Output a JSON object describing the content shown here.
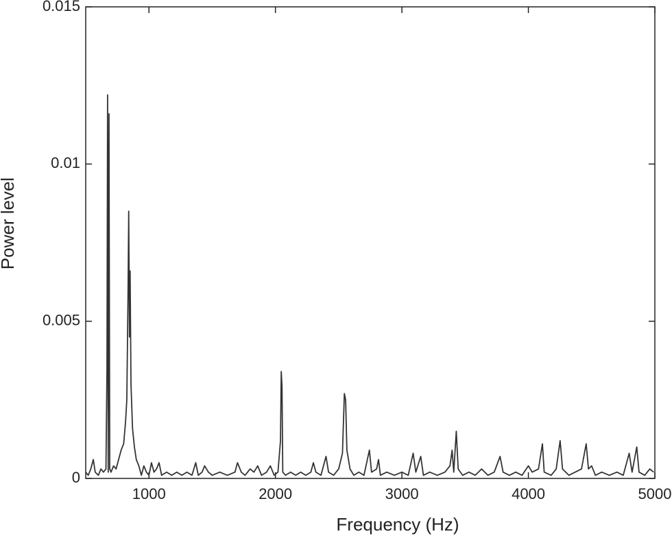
{
  "chart_data": {
    "type": "line",
    "x_label": "Frequency (Hz)",
    "y_label": "Power level",
    "color": "#333333",
    "xlim": [
      500,
      5000
    ],
    "xticks": [
      1000,
      2000,
      3000,
      4000,
      5000
    ],
    "ylim": [
      0,
      0.015
    ],
    "yticks": [
      0,
      0.005,
      0.01,
      0.015
    ],
    "x": [
      500,
      520,
      540,
      560,
      575,
      600,
      620,
      640,
      660,
      668,
      673,
      678,
      684,
      690,
      700,
      720,
      740,
      760,
      780,
      800,
      815,
      825,
      835,
      840,
      846,
      851,
      858,
      870,
      885,
      900,
      920,
      940,
      960,
      980,
      1000,
      1020,
      1040,
      1060,
      1080,
      1100,
      1140,
      1180,
      1220,
      1260,
      1300,
      1340,
      1370,
      1390,
      1420,
      1440,
      1470,
      1500,
      1560,
      1620,
      1680,
      1700,
      1730,
      1760,
      1800,
      1830,
      1860,
      1890,
      1930,
      1960,
      1990,
      2020,
      2040,
      2046,
      2052,
      2058,
      2080,
      2120,
      2160,
      2200,
      2240,
      2280,
      2300,
      2320,
      2360,
      2400,
      2420,
      2460,
      2500,
      2530,
      2545,
      2555,
      2565,
      2590,
      2620,
      2660,
      2700,
      2743,
      2760,
      2800,
      2815,
      2830,
      2880,
      2940,
      3000,
      3050,
      3089,
      3110,
      3149,
      3170,
      3220,
      3280,
      3340,
      3380,
      3397,
      3410,
      3430,
      3445,
      3480,
      3530,
      3580,
      3630,
      3680,
      3730,
      3776,
      3800,
      3850,
      3900,
      3950,
      4000,
      4030,
      4080,
      4111,
      4125,
      4180,
      4220,
      4251,
      4270,
      4320,
      4370,
      4420,
      4457,
      4475,
      4500,
      4530,
      4580,
      4640,
      4700,
      4750,
      4797,
      4820,
      4857,
      4875,
      4920,
      4960,
      4990
    ],
    "values": [
      0.0002,
      0.0001,
      0.0003,
      0.0006,
      0.0002,
      0.0001,
      0.0003,
      0.0002,
      0.0003,
      0.0035,
      0.0122,
      0.0002,
      0.0116,
      0.0003,
      0.0002,
      0.0004,
      0.0003,
      0.0006,
      0.0009,
      0.0011,
      0.0018,
      0.0025,
      0.006,
      0.0085,
      0.0045,
      0.0066,
      0.003,
      0.0016,
      0.001,
      0.0006,
      0.0004,
      0.0001,
      0.0004,
      0.0002,
      0.0001,
      0.0005,
      0.0002,
      0.0003,
      0.0005,
      0.0001,
      0.0002,
      0.0001,
      0.0002,
      0.0001,
      0.0002,
      0.0001,
      0.0005,
      0.0001,
      0.0002,
      0.0004,
      0.0002,
      0.0001,
      0.0002,
      0.0001,
      0.0002,
      0.0005,
      0.0002,
      0.0001,
      0.0003,
      0.0002,
      0.0004,
      0.0001,
      0.0002,
      0.0004,
      0.0001,
      0.0002,
      0.0012,
      0.0034,
      0.0029,
      0.0002,
      0.0001,
      0.0002,
      0.0001,
      0.0002,
      0.0001,
      0.0002,
      0.0005,
      0.0002,
      0.0001,
      0.0007,
      0.0002,
      0.0001,
      0.0003,
      0.0008,
      0.0027,
      0.0025,
      0.0009,
      0.0003,
      0.0001,
      0.0002,
      0.0001,
      0.0009,
      0.0002,
      0.0003,
      0.0006,
      0.0001,
      0.0002,
      0.0001,
      0.0002,
      0.0001,
      0.0008,
      0.0002,
      0.0007,
      0.0001,
      0.0002,
      0.0001,
      0.0002,
      0.0004,
      0.0009,
      0.0002,
      0.0015,
      0.0003,
      0.0001,
      0.0002,
      0.0001,
      0.0003,
      0.0001,
      0.0002,
      0.0007,
      0.0002,
      0.0001,
      0.0002,
      0.0001,
      0.0004,
      0.0002,
      0.0003,
      0.0011,
      0.0002,
      0.0001,
      0.0003,
      0.0012,
      0.0003,
      0.0001,
      0.0002,
      0.0003,
      0.0011,
      0.0003,
      0.0004,
      0.0001,
      0.0002,
      0.0001,
      0.0002,
      0.0001,
      0.0008,
      0.0002,
      0.001,
      0.0002,
      0.0001,
      0.0003,
      0.0002
    ]
  }
}
